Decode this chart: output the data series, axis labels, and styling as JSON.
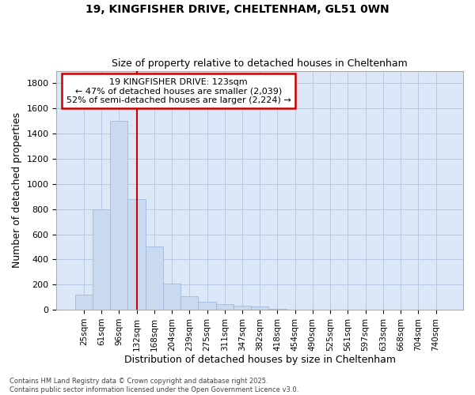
{
  "title_line1": "19, KINGFISHER DRIVE, CHELTENHAM, GL51 0WN",
  "title_line2": "Size of property relative to detached houses in Cheltenham",
  "xlabel": "Distribution of detached houses by size in Cheltenham",
  "ylabel": "Number of detached properties",
  "bar_color": "#c9d9f0",
  "bar_edge_color": "#a0b8e0",
  "ax_background_color": "#dce8f8",
  "fig_background_color": "#ffffff",
  "grid_color": "#b0c4de",
  "categories": [
    "25sqm",
    "61sqm",
    "96sqm",
    "132sqm",
    "168sqm",
    "204sqm",
    "239sqm",
    "275sqm",
    "311sqm",
    "347sqm",
    "382sqm",
    "418sqm",
    "454sqm",
    "490sqm",
    "525sqm",
    "561sqm",
    "597sqm",
    "633sqm",
    "668sqm",
    "704sqm",
    "740sqm"
  ],
  "values": [
    120,
    800,
    1500,
    880,
    500,
    210,
    110,
    65,
    45,
    35,
    25,
    10,
    0,
    0,
    0,
    0,
    0,
    0,
    0,
    0,
    0
  ],
  "ylim": [
    0,
    1900
  ],
  "yticks": [
    0,
    200,
    400,
    600,
    800,
    1000,
    1200,
    1400,
    1600,
    1800
  ],
  "annotation_title": "19 KINGFISHER DRIVE: 123sqm",
  "annotation_line2": "← 47% of detached houses are smaller (2,039)",
  "annotation_line3": "52% of semi-detached houses are larger (2,224) →",
  "red_line_x": 3.0,
  "vline_color": "#cc0000",
  "annotation_box_edge": "#cc0000",
  "footer_line1": "Contains HM Land Registry data © Crown copyright and database right 2025.",
  "footer_line2": "Contains public sector information licensed under the Open Government Licence v3.0."
}
